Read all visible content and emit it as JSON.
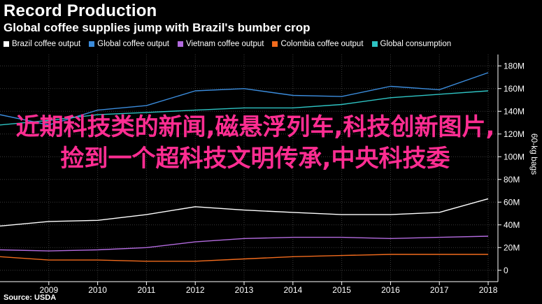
{
  "header": {
    "title": "Record Production",
    "subtitle": "Global coffee supplies jump with Brazil's bumber crop"
  },
  "overlay_text": "近期科技类的新闻,磁悬浮列车,科技创新图片,捡到一个超科技文明传承,中央科技委",
  "source": "Source: USDA",
  "chart_data": {
    "type": "line",
    "title": "Global coffee supplies jump with Brazil's bumber crop",
    "ylabel": "60-kg bags",
    "xlabel": "",
    "x": [
      2008,
      2009,
      2010,
      2011,
      2012,
      2013,
      2014,
      2015,
      2016,
      2017,
      2018
    ],
    "x_ticks": [
      "2009",
      "2010",
      "2011",
      "2012",
      "2013",
      "2014",
      "2015",
      "2016",
      "2017",
      "2018"
    ],
    "xlim": [
      2008,
      2018.2
    ],
    "ylim": [
      -10,
      190
    ],
    "y_ticks": [
      0,
      20,
      40,
      60,
      80,
      100,
      120,
      140,
      160,
      180
    ],
    "y_tick_labels": [
      "0",
      "20M",
      "40M",
      "60M",
      "80M",
      "100M",
      "120M",
      "140M",
      "160M",
      "180M"
    ],
    "grid": true,
    "legend_position": "top",
    "series": [
      {
        "name": "Brazil coffee output",
        "color": "#ffffff",
        "values": [
          39,
          43,
          44,
          49,
          56,
          53,
          51,
          49,
          49,
          51,
          63
        ]
      },
      {
        "name": "Global coffee output",
        "color": "#3b8cdc",
        "values": [
          137,
          128,
          141,
          145,
          158,
          160,
          154,
          153,
          162,
          159,
          174
        ]
      },
      {
        "name": "Vietnam coffee output",
        "color": "#b36bdf",
        "values": [
          18,
          17,
          18,
          20,
          25,
          28,
          29,
          29,
          28,
          29,
          30
        ]
      },
      {
        "name": "Colombia coffee output",
        "color": "#f26b1d",
        "values": [
          12,
          9,
          9,
          8,
          8,
          10,
          12,
          13,
          14,
          14,
          14
        ]
      },
      {
        "name": "Global consumption",
        "color": "#2ec4c4",
        "values": [
          128,
          132,
          137,
          139,
          141,
          143,
          143,
          146,
          152,
          155,
          158
        ]
      }
    ]
  }
}
